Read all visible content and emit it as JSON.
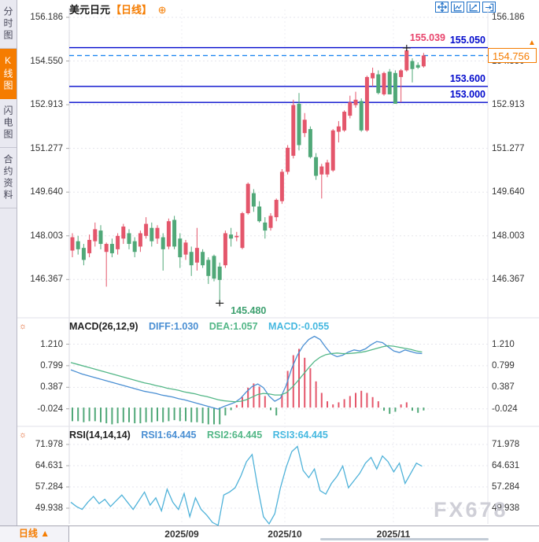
{
  "header": {
    "title": "美元日元",
    "period_tag": "【日线】",
    "settings_icon": "⊕"
  },
  "sidebar": {
    "tabs": [
      {
        "label": "分时图",
        "selected": false
      },
      {
        "label": "K线图",
        "selected": true
      },
      {
        "label": "闪电图",
        "selected": false
      },
      {
        "label": "合约资料",
        "selected": false
      }
    ]
  },
  "toolbar": {
    "icons": [
      "pan",
      "chart-area",
      "trend-chart",
      "exit"
    ]
  },
  "bottom_bar": {
    "period_label": "日线",
    "period_arrow": "▲"
  },
  "watermark": "FX678",
  "colors": {
    "up": "#e4566b",
    "down": "#50a878",
    "accent_orange": "#f57c00",
    "level_blue": "#0008cc",
    "dashed_blue": "#1e86f0",
    "diff_line": "#4a8fd3",
    "dea_line": "#53b787",
    "macd_text": "#45b8e0",
    "rsi_line": "#4fb2d9",
    "high_label": "#e8436b",
    "low_label": "#3da06f",
    "axis_text": "#333333",
    "watermark": "#c7c7d1",
    "toolbar_blue": "#2272c8"
  },
  "chart_data": {
    "type": "candlestick-with-indicators",
    "symbol": "美元日元",
    "interval": "日线",
    "x_axis": {
      "labels": [
        "2025/09",
        "2025/10",
        "2025/11"
      ]
    },
    "main": {
      "axis_ticks": [
        "156.186",
        "154.550",
        "152.913",
        "151.277",
        "149.640",
        "148.003",
        "146.367"
      ],
      "levels": [
        {
          "label": "155.050"
        },
        {
          "label": "153.600"
        },
        {
          "label": "153.000"
        }
      ],
      "current_price": "154.756",
      "high_label": "155.039",
      "low_label": "145.480",
      "candles": [
        [
          147.45,
          148.1,
          147.2,
          147.95
        ],
        [
          147.8,
          148.0,
          147.3,
          147.5
        ],
        [
          147.55,
          147.7,
          146.9,
          147.1
        ],
        [
          147.35,
          148.05,
          147.2,
          147.85
        ],
        [
          147.8,
          148.5,
          147.6,
          148.25
        ],
        [
          148.2,
          148.4,
          147.5,
          147.7
        ],
        [
          147.4,
          147.75,
          146.1,
          147.7
        ],
        [
          147.7,
          147.9,
          147.2,
          147.35
        ],
        [
          147.5,
          148.1,
          147.3,
          148.0
        ],
        [
          147.9,
          148.45,
          147.7,
          148.35
        ],
        [
          148.1,
          148.25,
          147.5,
          147.7
        ],
        [
          147.8,
          147.95,
          147.2,
          147.4
        ],
        [
          147.6,
          148.2,
          147.4,
          148.1
        ],
        [
          148.0,
          148.7,
          147.9,
          148.45
        ],
        [
          148.3,
          148.5,
          147.6,
          147.8
        ],
        [
          147.9,
          148.4,
          147.7,
          148.3
        ],
        [
          147.95,
          148.1,
          146.7,
          147.5
        ],
        [
          147.6,
          148.65,
          147.5,
          148.55
        ],
        [
          148.6,
          148.75,
          147.5,
          147.6
        ],
        [
          147.9,
          148.1,
          146.8,
          147.2
        ],
        [
          147.3,
          147.85,
          147.1,
          147.75
        ],
        [
          147.4,
          147.6,
          146.5,
          146.9
        ],
        [
          147.0,
          148.3,
          146.7,
          147.55
        ],
        [
          147.4,
          147.5,
          146.8,
          146.9
        ],
        [
          147.1,
          147.2,
          146.2,
          146.5
        ],
        [
          147.25,
          147.3,
          146.3,
          146.4
        ],
        [
          146.85,
          147.0,
          145.48,
          146.35
        ],
        [
          146.9,
          148.2,
          146.8,
          148.1
        ],
        [
          148.05,
          148.3,
          147.6,
          147.9
        ],
        [
          147.95,
          148.15,
          147.8,
          148.0
        ],
        [
          147.55,
          148.9,
          147.5,
          148.85
        ],
        [
          148.85,
          150.0,
          148.8,
          149.95
        ],
        [
          149.6,
          149.75,
          148.9,
          149.1
        ],
        [
          149.1,
          149.3,
          148.5,
          148.55
        ],
        [
          148.5,
          148.7,
          147.9,
          148.2
        ],
        [
          148.3,
          148.85,
          148.2,
          148.75
        ],
        [
          148.7,
          149.4,
          148.55,
          149.35
        ],
        [
          149.3,
          150.5,
          149.2,
          150.4
        ],
        [
          150.4,
          151.4,
          150.3,
          151.3
        ],
        [
          151.0,
          153.1,
          150.9,
          152.9
        ],
        [
          152.95,
          153.35,
          151.2,
          151.4
        ],
        [
          151.85,
          152.6,
          151.7,
          152.35
        ],
        [
          152.0,
          152.1,
          150.9,
          150.95
        ],
        [
          150.95,
          151.1,
          150.1,
          150.25
        ],
        [
          150.3,
          150.7,
          149.4,
          150.6
        ],
        [
          150.3,
          150.85,
          150.2,
          150.75
        ],
        [
          150.45,
          152.0,
          150.4,
          151.95
        ],
        [
          151.9,
          152.3,
          151.5,
          152.1
        ],
        [
          151.95,
          152.7,
          151.9,
          152.65
        ],
        [
          152.5,
          153.25,
          152.4,
          153.0
        ],
        [
          152.9,
          153.4,
          152.8,
          153.1
        ],
        [
          153.05,
          153.15,
          151.9,
          151.95
        ],
        [
          151.95,
          154.0,
          151.9,
          153.95
        ],
        [
          153.9,
          154.3,
          153.6,
          154.1
        ],
        [
          154.05,
          154.2,
          153.3,
          153.35
        ],
        [
          153.3,
          154.15,
          153.25,
          154.1
        ],
        [
          154.15,
          154.25,
          153.3,
          153.3
        ],
        [
          154.1,
          154.2,
          152.95,
          152.95
        ],
        [
          153.95,
          154.25,
          153.0,
          154.2
        ],
        [
          154.2,
          155.039,
          154.15,
          154.95
        ],
        [
          154.55,
          154.65,
          153.75,
          154.25
        ],
        [
          154.4,
          154.5,
          154.25,
          154.3
        ],
        [
          154.35,
          154.85,
          154.3,
          154.756
        ]
      ]
    },
    "macd": {
      "title": "MACD(26,12,9)",
      "diff_label": "DIFF:1.030",
      "dea_label": "DEA:1.057",
      "macd_label": "MACD:-0.055",
      "axis_ticks": [
        "1.210",
        "0.799",
        "0.387",
        "-0.024"
      ],
      "diff": [
        0.72,
        0.68,
        0.64,
        0.61,
        0.58,
        0.55,
        0.52,
        0.49,
        0.46,
        0.43,
        0.4,
        0.37,
        0.34,
        0.31,
        0.29,
        0.27,
        0.24,
        0.22,
        0.2,
        0.17,
        0.15,
        0.12,
        0.09,
        0.06,
        0.03,
        0.0,
        -0.03,
        0.02,
        0.06,
        0.1,
        0.18,
        0.3,
        0.4,
        0.45,
        0.38,
        0.22,
        0.12,
        0.18,
        0.42,
        0.75,
        1.0,
        1.18,
        1.3,
        1.36,
        1.3,
        1.15,
        1.02,
        0.97,
        1.0,
        1.06,
        1.1,
        1.08,
        1.12,
        1.2,
        1.26,
        1.24,
        1.16,
        1.08,
        1.05,
        1.1,
        1.07,
        1.04,
        1.03
      ],
      "dea": [
        0.86,
        0.83,
        0.8,
        0.77,
        0.74,
        0.71,
        0.68,
        0.65,
        0.62,
        0.59,
        0.56,
        0.53,
        0.5,
        0.47,
        0.45,
        0.42,
        0.4,
        0.37,
        0.35,
        0.33,
        0.3,
        0.28,
        0.26,
        0.23,
        0.21,
        0.18,
        0.15,
        0.13,
        0.12,
        0.11,
        0.12,
        0.15,
        0.2,
        0.25,
        0.27,
        0.26,
        0.24,
        0.24,
        0.28,
        0.38,
        0.5,
        0.63,
        0.76,
        0.88,
        0.96,
        1.01,
        1.03,
        1.04,
        1.03,
        1.03,
        1.04,
        1.05,
        1.07,
        1.1,
        1.13,
        1.16,
        1.18,
        1.17,
        1.15,
        1.13,
        1.11,
        1.08,
        1.06
      ],
      "hist": [
        -0.26,
        -0.26,
        -0.28,
        -0.26,
        -0.26,
        -0.28,
        -0.3,
        -0.32,
        -0.3,
        -0.28,
        -0.28,
        -0.3,
        -0.3,
        -0.28,
        -0.28,
        -0.26,
        -0.28,
        -0.26,
        -0.24,
        -0.26,
        -0.26,
        -0.28,
        -0.28,
        -0.3,
        -0.32,
        -0.32,
        -0.32,
        -0.15,
        -0.05,
        0.05,
        0.2,
        0.38,
        0.46,
        0.4,
        0.22,
        -0.05,
        -0.15,
        0.25,
        0.7,
        1.0,
        1.12,
        0.95,
        0.75,
        0.5,
        0.28,
        0.12,
        0.06,
        0.1,
        0.16,
        0.22,
        0.28,
        0.32,
        0.28,
        0.2,
        0.12,
        -0.06,
        -0.12,
        -0.08,
        0.06,
        0.1,
        -0.06,
        -0.1,
        -0.055
      ]
    },
    "rsi": {
      "title": "RSI(14,14,14)",
      "rsi1_label": "RSI1:64.445",
      "rsi2_label": "RSI2:64.445",
      "rsi3_label": "RSI3:64.445",
      "axis_ticks": [
        "71.978",
        "64.631",
        "57.284",
        "49.938"
      ],
      "values": [
        52.0,
        50.5,
        49.5,
        52.0,
        54.0,
        51.5,
        53.0,
        50.5,
        52.5,
        54.5,
        52.0,
        49.5,
        52.5,
        55.5,
        51.0,
        53.5,
        49.0,
        56.5,
        52.0,
        49.5,
        55.0,
        47.0,
        53.5,
        49.5,
        47.5,
        45.0,
        44.0,
        54.5,
        55.5,
        57.0,
        61.0,
        66.0,
        68.5,
        57.0,
        47.0,
        44.5,
        48.0,
        57.0,
        64.0,
        69.5,
        71.3,
        63.0,
        60.5,
        63.5,
        56.0,
        54.8,
        58.5,
        61.0,
        64.5,
        57.0,
        59.5,
        62.0,
        65.5,
        67.5,
        63.5,
        68.0,
        66.0,
        62.5,
        65.5,
        58.5,
        62.0,
        65.5,
        64.445
      ]
    }
  }
}
